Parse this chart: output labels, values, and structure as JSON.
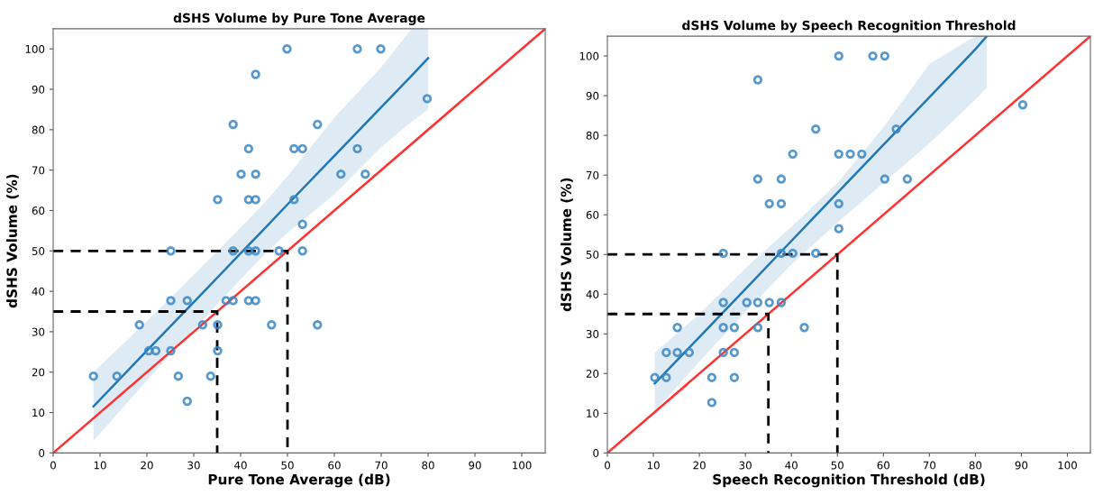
{
  "chart_data": [
    {
      "type": "scatter",
      "title": "dSHS Volume by Pure Tone Average",
      "xlabel": "Pure Tone Average (dB)",
      "ylabel": "dSHS Volume (%)",
      "xlim": [
        0,
        105
      ],
      "ylim": [
        0,
        105
      ],
      "xticks": [
        0,
        10,
        20,
        30,
        40,
        50,
        60,
        70,
        80,
        90,
        100
      ],
      "yticks": [
        0,
        10,
        20,
        30,
        40,
        50,
        60,
        70,
        80,
        90,
        100
      ],
      "grid": false,
      "marker": "circle",
      "series": [
        {
          "color": "#3a87c4",
          "x": [
            8.6,
            13.6,
            18.4,
            20.4,
            21.9,
            25.1,
            25.1,
            25.1,
            26.7,
            28.6,
            28.6,
            31.9,
            33.6,
            35.1,
            35.1,
            35.1,
            36.9,
            38.4,
            38.4,
            38.4,
            40.1,
            41.7,
            41.7,
            41.7,
            41.7,
            43.2,
            43.2,
            43.2,
            43.2,
            43.2,
            46.6,
            48.2,
            49.9,
            51.4,
            51.4,
            53.2,
            53.2,
            53.2,
            56.4,
            56.4,
            61.4,
            64.9,
            64.9,
            66.6,
            69.9,
            79.8
          ],
          "values": [
            19,
            19,
            31.7,
            25.3,
            25.3,
            25.3,
            37.7,
            50,
            19,
            12.8,
            37.7,
            31.7,
            19,
            25.3,
            31.7,
            62.7,
            37.7,
            37.7,
            50,
            81.3,
            69,
            75.3,
            62.7,
            37.7,
            50,
            69,
            62.7,
            37.7,
            93.7,
            50,
            31.7,
            50,
            100,
            75.3,
            62.7,
            75.3,
            56.6,
            50,
            31.7,
            81.3,
            69,
            75.3,
            100,
            69,
            100,
            87.7
          ]
        },
        {
          "type": "line",
          "marker": "none",
          "color": "#1f77b4",
          "x": [
            8.6,
            20,
            30,
            40,
            45,
            50,
            60,
            70,
            76.5,
            80
          ],
          "values": [
            11.5,
            25.3,
            37.3,
            49.4,
            55.4,
            61.5,
            73.5,
            85.6,
            93.4,
            97.7
          ],
          "lower": [
            3,
            18,
            30.5,
            43,
            49,
            54.5,
            64,
            75.7,
            82,
            85
          ],
          "upper": [
            20,
            32.6,
            44.1,
            55.8,
            61.8,
            68.5,
            83,
            95.5,
            105,
            105
          ]
        },
        {
          "type": "line",
          "marker": "none",
          "color": "#ff3030",
          "x": [
            0,
            105
          ],
          "values": [
            0,
            105
          ]
        },
        {
          "type": "line",
          "marker": "none",
          "color": "#000000",
          "line_style": "dashed",
          "x": [
            0,
            35,
            35
          ],
          "values": [
            35,
            35,
            0
          ]
        },
        {
          "type": "line",
          "marker": "none",
          "color": "#000000",
          "line_style": "dashed",
          "x": [
            0,
            50,
            50
          ],
          "values": [
            50,
            50,
            0
          ]
        }
      ]
    },
    {
      "type": "scatter",
      "title": "dSHS Volume by Speech Recognition Threshold",
      "xlabel": "Speech Recognition Threshold (dB)",
      "ylabel": "dSHS Volume (%)",
      "xlim": [
        0,
        105
      ],
      "ylim": [
        0,
        105
      ],
      "xticks": [
        0,
        10,
        20,
        30,
        40,
        50,
        60,
        70,
        80,
        90,
        100
      ],
      "yticks": [
        0,
        10,
        20,
        30,
        40,
        50,
        60,
        70,
        80,
        90,
        100
      ],
      "grid": false,
      "marker": "circle",
      "series": [
        {
          "color": "#3a87c4",
          "x": [
            10.3,
            12.8,
            12.8,
            15.2,
            17.8,
            15.2,
            22.7,
            22.7,
            25.2,
            25.2,
            25.2,
            25.2,
            27.6,
            27.6,
            27.6,
            30.3,
            32.7,
            35.2,
            37.8,
            32.7,
            37.8,
            40.3,
            42.8,
            45.3,
            32.7,
            32.7,
            35.2,
            37.8,
            37.8,
            40.3,
            45.3,
            50.3,
            50.3,
            52.8,
            50.3,
            50.3,
            57.7,
            60.3,
            62.8,
            55.3,
            60.3,
            65.2,
            90.3
          ],
          "values": [
            19,
            19,
            25.3,
            25.3,
            25.3,
            31.6,
            19,
            12.7,
            25.3,
            31.6,
            37.9,
            50.3,
            25.3,
            19,
            31.6,
            37.9,
            37.9,
            37.9,
            37.9,
            31.6,
            50.3,
            50.3,
            31.6,
            50.3,
            94,
            69,
            62.8,
            62.8,
            69,
            75.3,
            81.6,
            100,
            75.3,
            75.3,
            62.8,
            56.5,
            100,
            100,
            81.6,
            75.3,
            69,
            69,
            87.7
          ]
        },
        {
          "type": "line",
          "marker": "none",
          "color": "#1f77b4",
          "x": [
            10.3,
            20,
            30,
            40,
            50,
            60,
            70,
            80,
            82.5
          ],
          "values": [
            17.5,
            29.2,
            41.3,
            53.4,
            65.5,
            77.6,
            89.6,
            101.7,
            105
          ],
          "lower": [
            10.5,
            23,
            35.5,
            47.5,
            58,
            68,
            78,
            89,
            92
          ],
          "upper": [
            25.3,
            35,
            46.5,
            57,
            68,
            82,
            98,
            105,
            105
          ]
        },
        {
          "type": "line",
          "marker": "none",
          "color": "#ff3030",
          "x": [
            0,
            105
          ],
          "values": [
            0,
            105
          ]
        },
        {
          "type": "line",
          "marker": "none",
          "color": "#000000",
          "line_style": "dashed",
          "x": [
            0,
            35,
            35
          ],
          "values": [
            35,
            35,
            0
          ]
        },
        {
          "type": "line",
          "marker": "none",
          "color": "#000000",
          "line_style": "dashed",
          "x": [
            0,
            50,
            50
          ],
          "values": [
            50,
            50,
            0
          ]
        }
      ]
    }
  ]
}
